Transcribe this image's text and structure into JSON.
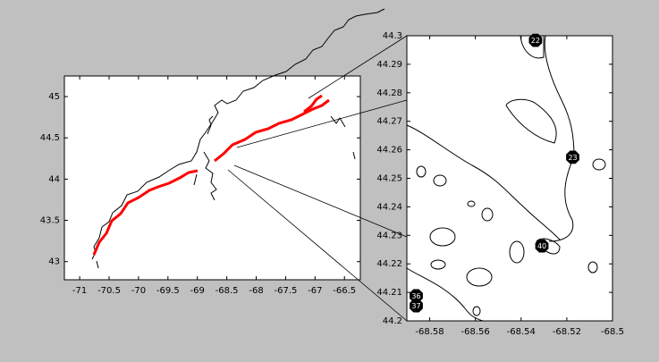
{
  "chart_data": [
    {
      "type": "map",
      "xlim": [
        -71.26,
        -66.23
      ],
      "ylim": [
        42.78,
        45.25
      ],
      "xticks": [
        -71,
        -70.5,
        -70,
        -69.5,
        -69,
        -68.5,
        -68,
        -67.5,
        -67,
        -66.5
      ],
      "yticks": [
        43,
        43.5,
        44,
        44.5,
        45
      ]
    },
    {
      "type": "scatter",
      "xlim": [
        -68.59,
        -68.5
      ],
      "ylim": [
        44.2,
        44.3
      ],
      "xticks": [
        -68.58,
        -68.56,
        -68.54,
        -68.52,
        -68.5
      ],
      "yticks": [
        44.2,
        44.21,
        44.22,
        44.23,
        44.24,
        44.25,
        44.26,
        44.27,
        44.28,
        44.29,
        44.3
      ],
      "x": [
        -68.5337,
        -68.5174,
        -68.5309,
        -68.5859,
        -68.5859
      ],
      "values": [
        44.2984,
        44.2574,
        44.2263,
        44.2088,
        44.2053
      ],
      "labels": [
        "22",
        "23",
        "40",
        "36",
        "37"
      ],
      "color": "#000000"
    }
  ]
}
